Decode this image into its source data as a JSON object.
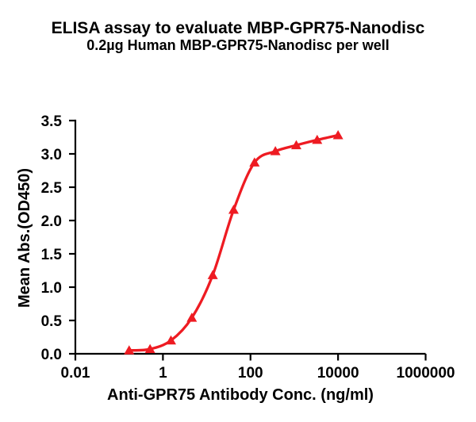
{
  "header": {
    "title": "ELISA assay to evaluate MBP-GPR75-Nanodisc",
    "subtitle": "0.2µg Human MBP-GPR75-Nanodisc per well"
  },
  "chart_data": {
    "type": "line",
    "title": "ELISA assay to evaluate MBP-GPR75-Nanodisc",
    "subtitle": "0.2µg Human MBP-GPR75-Nanodisc per well",
    "xlabel": "Anti-GPR75 Antibody Conc. (ng/ml)",
    "ylabel": "Mean Abs.(OD450)",
    "x_scale": "log10",
    "xlim": [
      0.01,
      1000000
    ],
    "ylim": [
      0.0,
      3.5
    ],
    "x_ticks": {
      "values": [
        0.01,
        1,
        100,
        10000,
        1000000
      ],
      "labels": [
        "0.01",
        "1",
        "100",
        "10000",
        "1000000"
      ]
    },
    "y_ticks": {
      "values": [
        0.0,
        0.5,
        1.0,
        1.5,
        2.0,
        2.5,
        3.0,
        3.5
      ],
      "labels": [
        "0.0",
        "0.5",
        "1.0",
        "1.5",
        "2.0",
        "2.5",
        "3.0",
        "3.5"
      ]
    },
    "grid": false,
    "legend": "none",
    "series": [
      {
        "name": "Human MBP-GPR75-Nanodisc",
        "marker": "triangle-up",
        "line_style": "smooth-sigmoid",
        "color": "#EE1B22",
        "x": [
          0.169,
          0.508,
          1.524,
          4.572,
          13.72,
          41.15,
          123.5,
          370.4,
          1111,
          3333,
          10000
        ],
        "y": [
          0.05,
          0.07,
          0.2,
          0.54,
          1.18,
          2.16,
          2.87,
          3.04,
          3.13,
          3.21,
          3.28
        ]
      }
    ]
  },
  "colors": {
    "background": "#FFFFFF",
    "axis": "#000000",
    "text": "#000000",
    "curve": "#EE1B22"
  }
}
